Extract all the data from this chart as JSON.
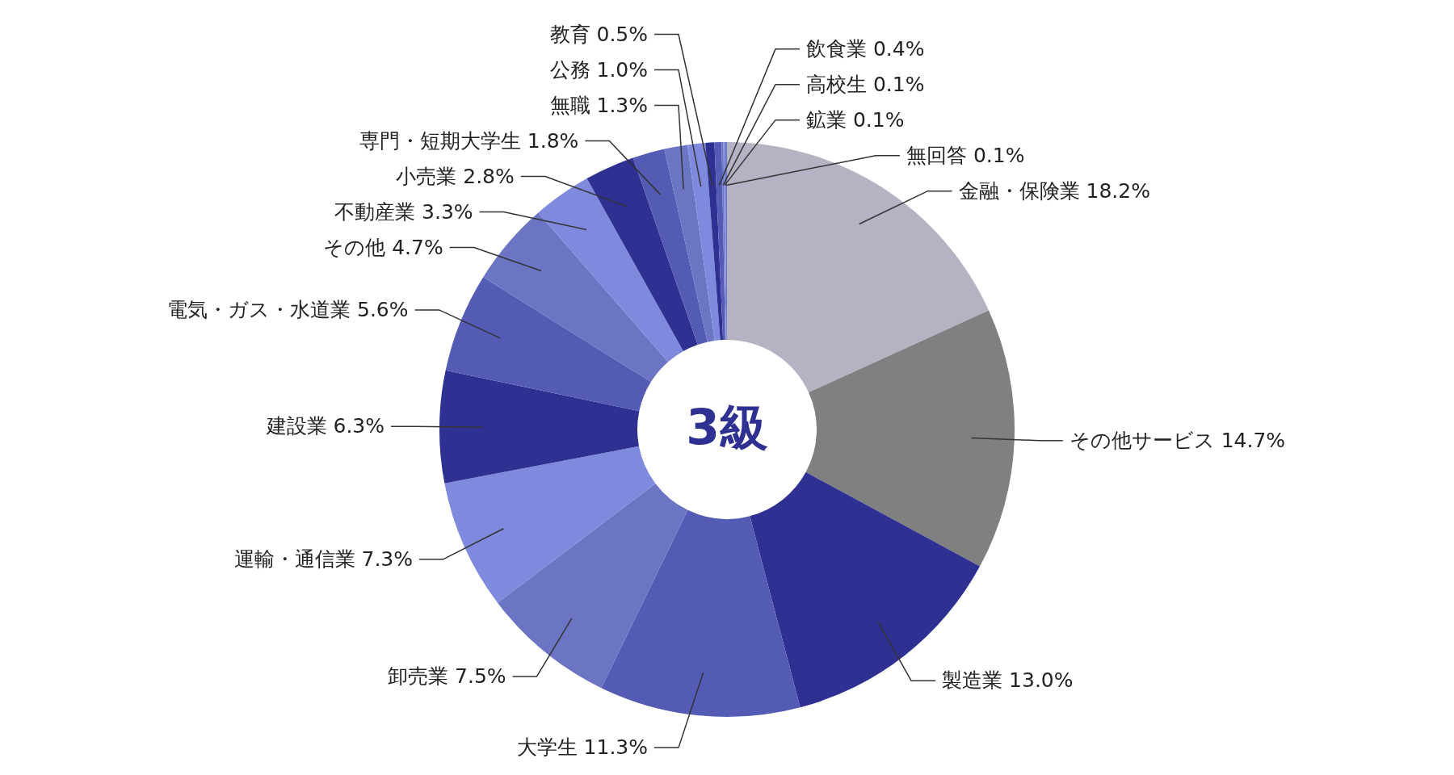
{
  "chart_data": {
    "type": "donut",
    "title": "3級",
    "categories": [
      "金融・保険業",
      "その他サービス",
      "製造業",
      "大学生",
      "卸売業",
      "運輸・通信業",
      "建設業",
      "電気・ガス・水道業",
      "その他",
      "不動産業",
      "小売業",
      "専門・短期大学生",
      "無職",
      "公務",
      "教育",
      "飲食業",
      "高校生",
      "鉱業",
      "無回答"
    ],
    "values": [
      18.2,
      14.7,
      13.0,
      11.3,
      7.5,
      7.3,
      6.3,
      5.6,
      4.7,
      3.3,
      2.8,
      1.8,
      1.3,
      1.0,
      0.5,
      0.4,
      0.1,
      0.1,
      0.1
    ],
    "value_labels": [
      "18.2%",
      "14.7%",
      "13.0%",
      "11.3%",
      "7.5%",
      "7.3%",
      "6.3%",
      "5.6%",
      "4.7%",
      "3.3%",
      "2.8%",
      "1.8%",
      "1.3%",
      "1.0%",
      "0.5%",
      "0.4%",
      "0.1%",
      "0.1%",
      "0.1%"
    ],
    "colors": [
      "#b3b3c3",
      "#808080",
      "#2e3192",
      "#535bb4",
      "#6c75c4",
      "#7f8ade",
      "#2e3192",
      "#535bb4",
      "#6c75c4",
      "#7f8ade",
      "#2e3192",
      "#535bb4",
      "#6c75c4",
      "#7f8ade",
      "#2e3192",
      "#535bb4",
      "#6c75c4",
      "#7f8ade",
      "#6c75c4"
    ]
  }
}
